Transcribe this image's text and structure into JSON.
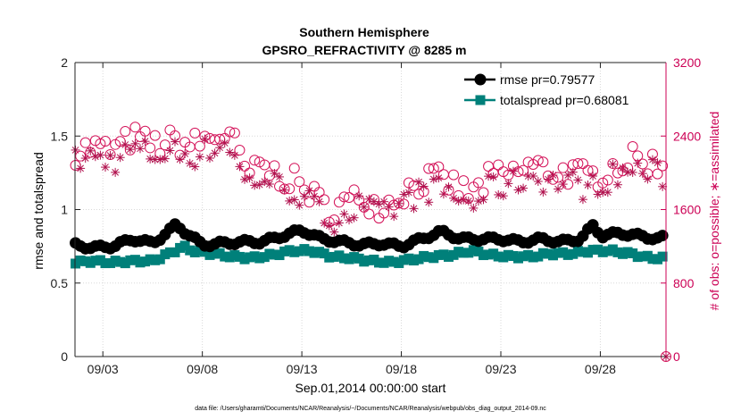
{
  "chart_data": {
    "type": "line",
    "title": "Southern Hemisphere",
    "subtitle": "GPSRO_REFRACTIVITY @ 8285 m",
    "xlabel": "Sep.01,2014 00:00:00 start",
    "ylabel": "rmse and totalspread",
    "ylabel_right": "# of obs: o=possible; ∗=assimilated",
    "footnote": "data file: /Users/gharamti/Documents/NCAR/Reanalysis/~/Documents/NCAR/Reanalysis/webpub/obs_diag_output_2014-09.nc",
    "xlim": [
      1.6,
      31.3
    ],
    "ylim": [
      0,
      2
    ],
    "ylim_right": [
      0,
      3200
    ],
    "x_ticks": [
      3,
      8,
      13,
      18,
      23,
      28
    ],
    "x_tick_labels": [
      "09/03",
      "09/08",
      "09/13",
      "09/18",
      "09/23",
      "09/28"
    ],
    "y_ticks": [
      0,
      0.5,
      1,
      1.5,
      2
    ],
    "y_tick_labels": [
      "0",
      "0.5",
      "1",
      "1.5",
      "2"
    ],
    "y_right_ticks": [
      0,
      800,
      1600,
      2400,
      3200
    ],
    "y_right_tick_labels": [
      "0",
      "800",
      "1600",
      "2400",
      "3200"
    ],
    "x_start": 1.625,
    "x_step": 0.25,
    "rmse_anchors": [
      [
        1.6,
        0.76
      ],
      [
        2.5,
        0.74
      ],
      [
        3.5,
        0.75
      ],
      [
        4.5,
        0.8
      ],
      [
        5.5,
        0.77
      ],
      [
        6.3,
        0.85
      ],
      [
        6.7,
        0.9
      ],
      [
        7.2,
        0.84
      ],
      [
        8.0,
        0.76
      ],
      [
        9.0,
        0.77
      ],
      [
        10.0,
        0.78
      ],
      [
        11.0,
        0.78
      ],
      [
        12.0,
        0.82
      ],
      [
        13.0,
        0.86
      ],
      [
        14.0,
        0.8
      ],
      [
        15.0,
        0.78
      ],
      [
        16.0,
        0.76
      ],
      [
        17.0,
        0.77
      ],
      [
        18.0,
        0.75
      ],
      [
        19.0,
        0.8
      ],
      [
        20.0,
        0.85
      ],
      [
        21.0,
        0.8
      ],
      [
        22.0,
        0.8
      ],
      [
        23.0,
        0.8
      ],
      [
        24.0,
        0.78
      ],
      [
        25.0,
        0.8
      ],
      [
        26.0,
        0.78
      ],
      [
        27.0,
        0.8
      ],
      [
        27.7,
        0.9
      ],
      [
        28.0,
        0.82
      ],
      [
        29.0,
        0.84
      ],
      [
        30.0,
        0.82
      ],
      [
        31.0,
        0.8
      ],
      [
        31.3,
        0.82
      ]
    ],
    "spread_anchors": [
      [
        1.6,
        0.64
      ],
      [
        2.5,
        0.65
      ],
      [
        3.5,
        0.64
      ],
      [
        4.5,
        0.65
      ],
      [
        5.5,
        0.65
      ],
      [
        6.5,
        0.71
      ],
      [
        7.0,
        0.75
      ],
      [
        7.5,
        0.72
      ],
      [
        8.5,
        0.7
      ],
      [
        9.5,
        0.68
      ],
      [
        10.5,
        0.67
      ],
      [
        11.5,
        0.69
      ],
      [
        12.5,
        0.72
      ],
      [
        13.5,
        0.72
      ],
      [
        14.5,
        0.68
      ],
      [
        15.5,
        0.67
      ],
      [
        16.5,
        0.65
      ],
      [
        17.5,
        0.64
      ],
      [
        18.5,
        0.66
      ],
      [
        19.5,
        0.68
      ],
      [
        20.5,
        0.69
      ],
      [
        21.5,
        0.72
      ],
      [
        22.5,
        0.69
      ],
      [
        23.5,
        0.68
      ],
      [
        24.5,
        0.68
      ],
      [
        25.5,
        0.7
      ],
      [
        26.5,
        0.7
      ],
      [
        27.5,
        0.72
      ],
      [
        28.5,
        0.72
      ],
      [
        29.5,
        0.7
      ],
      [
        30.5,
        0.67
      ],
      [
        31.3,
        0.67
      ]
    ],
    "obs_anchors": [
      [
        1.6,
        2230
      ],
      [
        2.5,
        2280
      ],
      [
        3.5,
        2230
      ],
      [
        4.5,
        2380
      ],
      [
        5.5,
        2300
      ],
      [
        6.5,
        2340
      ],
      [
        7.5,
        2300
      ],
      [
        8.5,
        2380
      ],
      [
        9.2,
        2430
      ],
      [
        9.5,
        2400
      ],
      [
        10.0,
        2050
      ],
      [
        10.5,
        1980
      ],
      [
        11.0,
        2080
      ],
      [
        11.5,
        2000
      ],
      [
        12.5,
        1920
      ],
      [
        13.5,
        1770
      ],
      [
        14.0,
        1640
      ],
      [
        14.5,
        1600
      ],
      [
        15.0,
        1660
      ],
      [
        15.5,
        1680
      ],
      [
        16.0,
        1760
      ],
      [
        16.5,
        1680
      ],
      [
        17.0,
        1640
      ],
      [
        17.5,
        1700
      ],
      [
        18.5,
        1850
      ],
      [
        19.5,
        1940
      ],
      [
        20.5,
        1880
      ],
      [
        21.5,
        1750
      ],
      [
        22.5,
        1950
      ],
      [
        23.5,
        1980
      ],
      [
        24.5,
        2080
      ],
      [
        25.5,
        2020
      ],
      [
        26.5,
        2000
      ],
      [
        27.5,
        1940
      ],
      [
        28.5,
        2060
      ],
      [
        29.5,
        2140
      ],
      [
        30.5,
        2120
      ],
      [
        31.3,
        2060
      ]
    ],
    "obs_seed": 7,
    "obs_jitter": 150,
    "assim_offset": -110,
    "series": [
      {
        "name": "rmse",
        "legend": "rmse pr=0.79577",
        "color": "#000000",
        "marker": "circle"
      },
      {
        "name": "totalspread",
        "legend": "totalspread pr=0.68081",
        "color": "#00807a",
        "marker": "square"
      },
      {
        "name": "possible obs",
        "color": "#d4145a",
        "marker": "open-circle",
        "axis": "right"
      },
      {
        "name": "assimilated obs",
        "color": "#b0104d",
        "marker": "asterisk",
        "axis": "right"
      }
    ]
  }
}
